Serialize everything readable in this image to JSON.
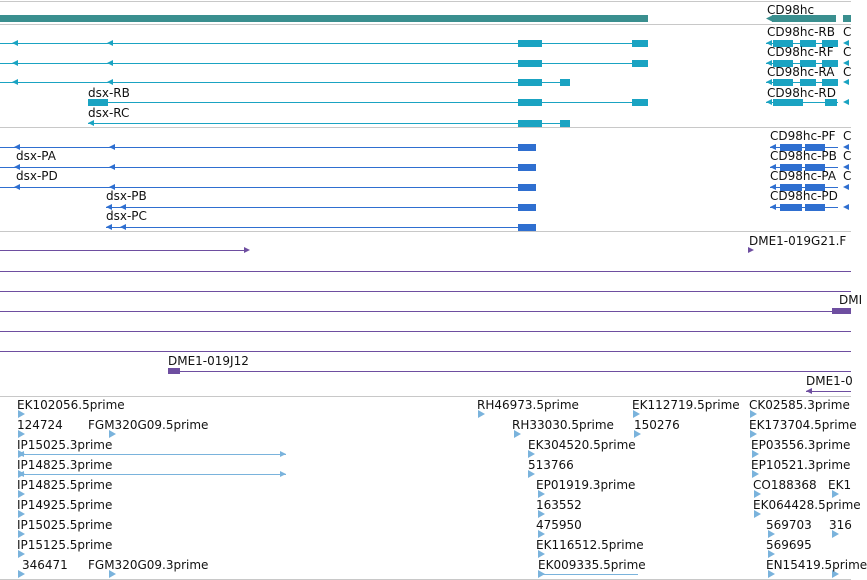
{
  "colors": {
    "gene": "#3a8f8f",
    "tx_flybase": "#1aa3c2",
    "tx_predicted": "#2f6fd0",
    "clone": "#6e4ea0",
    "est": "#7ab3dc",
    "separator": "#c8c8c8"
  },
  "gene_track": {
    "labels": [
      "CD98hc"
    ]
  },
  "flybase_transcripts": {
    "left_labels": [
      "dsx-RB",
      "dsx-RC"
    ],
    "right_labels": [
      "CD98hc-RB",
      "CD98hc-RF",
      "CD98hc-RA",
      "CD98hc-RD"
    ],
    "cut_labels": [
      "C",
      "C",
      "C"
    ]
  },
  "predicted_transcripts": {
    "left_labels": [
      "dsx-PA",
      "dsx-PD",
      "dsx-PB",
      "dsx-PC"
    ],
    "right_labels": [
      "CD98hc-PF",
      "CD98hc-PB",
      "CD98hc-PA",
      "CD98hc-PD"
    ],
    "cut_labels": [
      "C",
      "C",
      "C"
    ]
  },
  "clone_track": {
    "labels": [
      "DME1-019G21.F",
      "DMI",
      "DME1-019J12",
      "DME1-0"
    ]
  },
  "est_track": {
    "labels": [
      "EK102056.5prime",
      "124724",
      "FGM320G09.5prime",
      "IP15025.3prime",
      "IP14825.3prime",
      "IP14825.5prime",
      "IP14925.5prime",
      "IP15025.5prime",
      "IP15125.5prime",
      "346471",
      "FGM320G09.3prime",
      "RH46973.5prime",
      "EK112719.5prime",
      "RH33030.5prime",
      "150276",
      "EK304520.5prime",
      "513766",
      "EP01919.3prime",
      "163552",
      "475950",
      "EK116512.5prime",
      "EK009335.5prime",
      "CK02585.3prime",
      "EK173704.5prime",
      "EP03556.3prime",
      "EP10521.3prime",
      "CO188368",
      "EK1",
      "EK064428.5prime",
      "569703",
      "316",
      "569695",
      "EN15419.5prime"
    ]
  }
}
